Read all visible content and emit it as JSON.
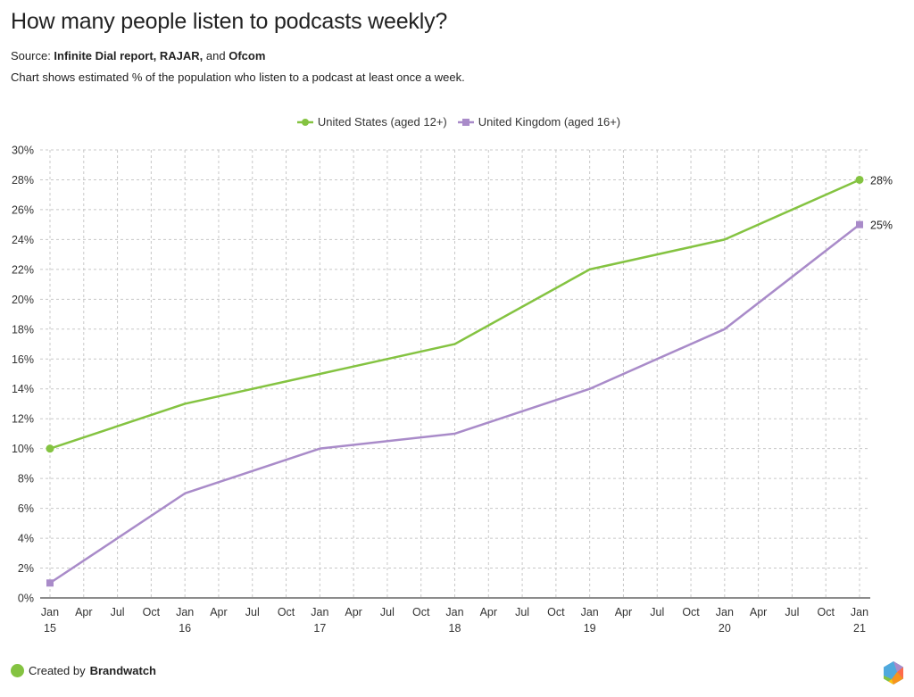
{
  "header": {
    "title": "How many people listen to podcasts weekly?",
    "source_prefix": "Source: ",
    "source_bold_1": "Infinite Dial report, RAJAR,",
    "source_mid": " and ",
    "source_bold_2": "Ofcom",
    "description": "Chart shows estimated % of the population who listen to a podcast at least once a week."
  },
  "footer": {
    "created_by": "Created by ",
    "brand": "Brandwatch",
    "dot_color": "#84c341"
  },
  "chart_data": {
    "type": "line",
    "title": "How many people listen to podcasts weekly?",
    "xlabel": "",
    "ylabel": "",
    "ylim": [
      0,
      30
    ],
    "y_ticks": [
      0,
      2,
      4,
      6,
      8,
      10,
      12,
      14,
      16,
      18,
      20,
      22,
      24,
      26,
      28,
      30
    ],
    "y_tick_labels": [
      "0%",
      "2%",
      "4%",
      "6%",
      "8%",
      "10%",
      "12%",
      "14%",
      "16%",
      "18%",
      "20%",
      "22%",
      "24%",
      "26%",
      "28%",
      "30%"
    ],
    "x_tick_months": [
      "Jan",
      "Apr",
      "Jul",
      "Oct",
      "Jan",
      "Apr",
      "Jul",
      "Oct",
      "Jan",
      "Apr",
      "Jul",
      "Oct",
      "Jan",
      "Apr",
      "Jul",
      "Oct",
      "Jan",
      "Apr",
      "Jul",
      "Oct",
      "Jan",
      "Apr",
      "Jul",
      "Oct",
      "Jan"
    ],
    "x_tick_years": [
      "15",
      "",
      "",
      "",
      "16",
      "",
      "",
      "",
      "17",
      "",
      "",
      "",
      "18",
      "",
      "",
      "",
      "19",
      "",
      "",
      "",
      "20",
      "",
      "",
      "",
      "21"
    ],
    "x": [
      "Jan 2015",
      "Jan 2016",
      "Jan 2017",
      "Jan 2018",
      "Jan 2019",
      "Jan 2020",
      "Jan 2021"
    ],
    "x_quarter_index": [
      0,
      4,
      8,
      12,
      16,
      20,
      24
    ],
    "grid": true,
    "legend_position": "top-center",
    "series": [
      {
        "name": "United States (aged 12+)",
        "color": "#84c341",
        "marker": "circle",
        "values": [
          10,
          13,
          15,
          17,
          22,
          24,
          28
        ],
        "end_label": "28%"
      },
      {
        "name": "United Kingdom (aged 16+)",
        "color": "#a98bc9",
        "marker": "square",
        "values": [
          1,
          7,
          10,
          11,
          14,
          18,
          25
        ],
        "end_label": "25%"
      }
    ]
  },
  "logo": {
    "colors": [
      "#4fa9dd",
      "#a98bc9",
      "#ff6b4a",
      "#f7941d",
      "#ffc20e",
      "#84c341"
    ]
  }
}
